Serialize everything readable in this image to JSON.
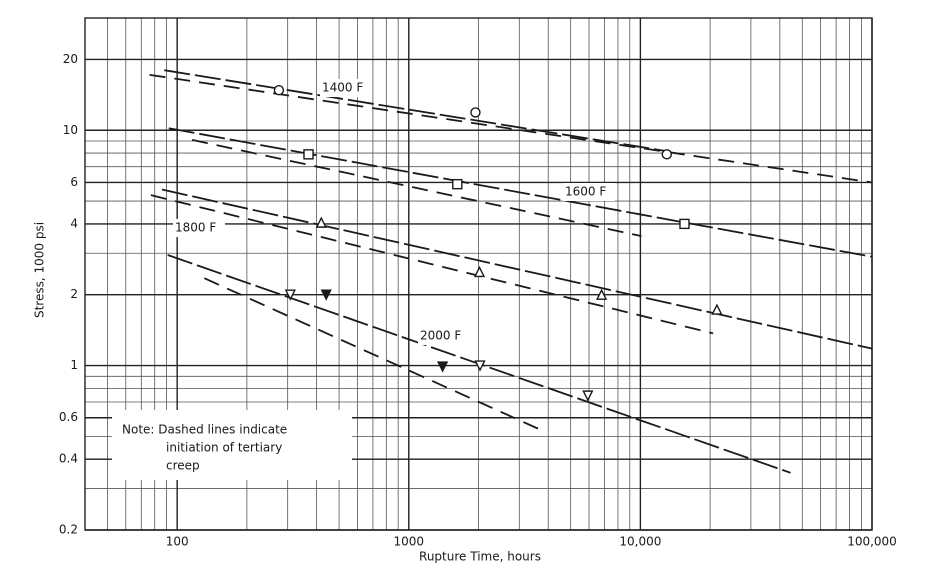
{
  "chart_data": {
    "type": "line",
    "x_label": "Rupture Time, hours",
    "y_label": "Stress, 1000 psi",
    "xscale": "log",
    "yscale": "log",
    "grid": true,
    "color": "#1a1a1a",
    "xlim": [
      40,
      100000
    ],
    "ylim": [
      0.2,
      30
    ],
    "xticks": [
      100,
      1000,
      {
        "value": 10000,
        "label": "10,000"
      },
      {
        "value": 100000,
        "label": "100,000"
      }
    ],
    "yticks": [
      0.2,
      0.4,
      0.6,
      1,
      2,
      4,
      6,
      10,
      20
    ],
    "note": [
      "Note: Dashed lines indicate",
      "initiation of tertiary",
      "creep"
    ],
    "series": [
      {
        "name": "1400 F",
        "marker": "circle",
        "x": [
          275,
          1940,
          13000
        ],
        "values": [
          14.8,
          11.9,
          7.9
        ],
        "filled": [
          false,
          false,
          false
        ],
        "rupture_line": {
          "x": [
            88,
            13500
          ],
          "values": [
            18,
            8.1
          ]
        },
        "tertiary_line": {
          "x": [
            76,
            100000
          ],
          "values": [
            17.2,
            6.0
          ]
        }
      },
      {
        "name": "1600 F",
        "marker": "square",
        "x": [
          369,
          1620,
          15500
        ],
        "values": [
          7.9,
          5.9,
          4.0
        ],
        "filled": [
          false,
          false,
          false
        ],
        "rupture_line": {
          "x": [
            92,
            100000
          ],
          "values": [
            10.2,
            2.9
          ]
        },
        "tertiary_line": {
          "x": [
            116,
            10100
          ],
          "values": [
            9.1,
            3.55
          ]
        }
      },
      {
        "name": "1800 F",
        "marker": "triangle",
        "x": [
          419,
          2020,
          6800,
          21400
        ],
        "values": [
          4.05,
          2.5,
          2.0,
          1.73
        ],
        "filled": [
          false,
          false,
          false,
          false
        ],
        "rupture_line": {
          "x": [
            86,
            100000
          ],
          "values": [
            5.6,
            1.18
          ]
        },
        "tertiary_line": {
          "x": [
            77,
            20600
          ],
          "values": [
            5.3,
            1.37
          ]
        }
      },
      {
        "name": "2000 F",
        "marker": "triangle-down",
        "x": [
          308,
          440,
          1400,
          2030,
          5930
        ],
        "values": [
          2.0,
          2.0,
          0.99,
          1.0,
          0.745
        ],
        "filled": [
          false,
          true,
          true,
          false,
          false
        ],
        "rupture_line": {
          "x": [
            91,
            44500
          ],
          "values": [
            2.95,
            0.35
          ]
        },
        "tertiary_line": {
          "x": [
            131,
            3760
          ],
          "values": [
            2.35,
            0.53
          ]
        }
      }
    ]
  }
}
